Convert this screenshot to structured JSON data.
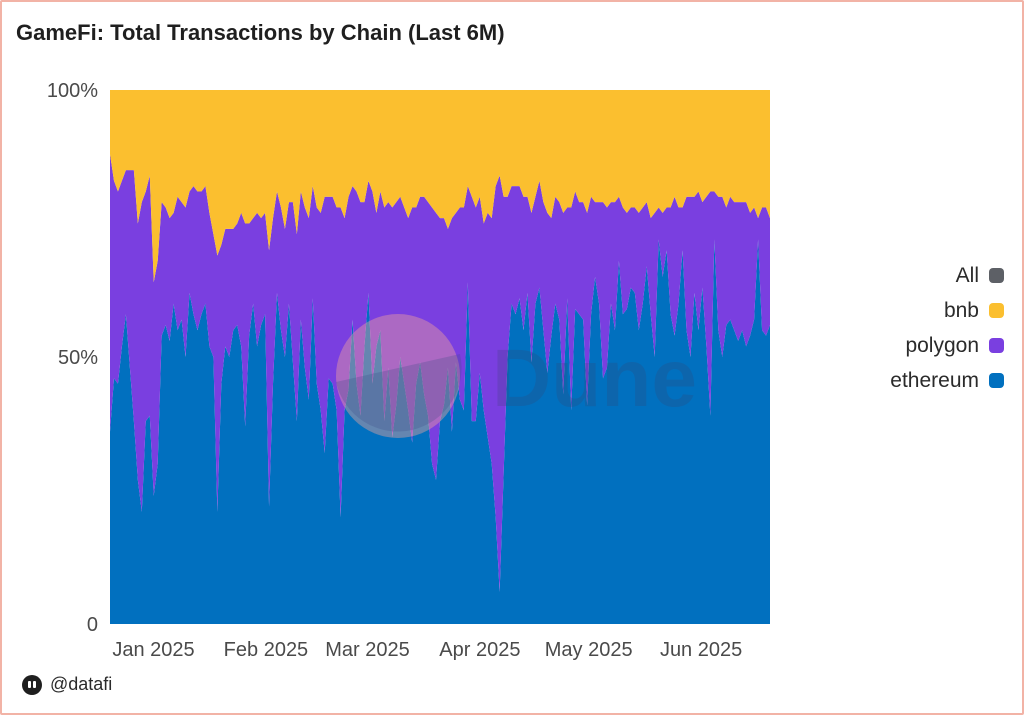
{
  "title": "GameFi: Total Transactions by Chain (Last 6M)",
  "watermark": "Dune",
  "attribution": "@datafi",
  "legend": [
    {
      "label": "All",
      "color": "#5d6066"
    },
    {
      "label": "bnb",
      "color": "#fbbf2f"
    },
    {
      "label": "polygon",
      "color": "#7a3fe0"
    },
    {
      "label": "ethereum",
      "color": "#0170bf"
    }
  ],
  "chart_data": {
    "type": "area",
    "stacked": true,
    "normalized": true,
    "x_range": [
      "2024-12-20",
      "2025-06-20"
    ],
    "x_ticks": [
      "Jan 2025",
      "Feb 2025",
      "Mar 2025",
      "Apr 2025",
      "May 2025",
      "Jun 2025"
    ],
    "y_ticks": [
      "0",
      "50%",
      "100%"
    ],
    "ylim": [
      0,
      100
    ],
    "legend_position": "right",
    "series_order_bottom_to_top": [
      "ethereum",
      "polygon",
      "bnb"
    ],
    "series": [
      {
        "name": "ethereum",
        "color": "#0170bf",
        "values": [
          36,
          46,
          45,
          52,
          58,
          48,
          38,
          27,
          21,
          38,
          39,
          24,
          30,
          54,
          56,
          53,
          60,
          55,
          57,
          50,
          62,
          58,
          55,
          58,
          60,
          52,
          50,
          21,
          45,
          52,
          50,
          55,
          56,
          52,
          37,
          54,
          60,
          52,
          56,
          58,
          22,
          45,
          62,
          55,
          50,
          60,
          49,
          38,
          57,
          48,
          42,
          61,
          45,
          40,
          32,
          46,
          45,
          40,
          20,
          40,
          44,
          57,
          45,
          39,
          52,
          62,
          45,
          52,
          55,
          38,
          48,
          35,
          41,
          50,
          45,
          40,
          34,
          45,
          49,
          43,
          39,
          30,
          27,
          38,
          41,
          48,
          36,
          49,
          42,
          40,
          64,
          38,
          38,
          47,
          40,
          35,
          30,
          20,
          6,
          28,
          50,
          60,
          58,
          61,
          55,
          62,
          49,
          60,
          63,
          55,
          47,
          54,
          60,
          57,
          43,
          61,
          40,
          59,
          58,
          57,
          41,
          58,
          65,
          60,
          46,
          48,
          60,
          55,
          68,
          58,
          59,
          63,
          62,
          55,
          60,
          67,
          58,
          50,
          72,
          65,
          70,
          58,
          54,
          60,
          70,
          55,
          50,
          62,
          55,
          63,
          52,
          39,
          72,
          55,
          50,
          56,
          57,
          55,
          53,
          55,
          52,
          54,
          57,
          72,
          55,
          54,
          56
        ]
      },
      {
        "name": "polygon",
        "color": "#7a3fe0",
        "values": [
          52,
          37,
          36,
          31,
          27,
          37,
          47,
          48,
          58,
          43,
          45,
          40,
          38,
          25,
          22,
          23,
          17,
          25,
          22,
          28,
          19,
          24,
          26,
          23,
          22,
          25,
          23,
          48,
          26,
          22,
          24,
          19,
          19,
          25,
          38,
          21,
          16,
          25,
          20,
          19,
          48,
          31,
          19,
          23,
          24,
          19,
          30,
          35,
          24,
          30,
          34,
          21,
          33,
          37,
          48,
          34,
          35,
          38,
          58,
          36,
          36,
          25,
          36,
          40,
          27,
          21,
          36,
          25,
          26,
          40,
          31,
          43,
          38,
          30,
          33,
          36,
          44,
          33,
          31,
          37,
          40,
          48,
          50,
          38,
          35,
          26,
          40,
          28,
          36,
          38,
          18,
          42,
          40,
          33,
          35,
          42,
          46,
          62,
          78,
          52,
          30,
          22,
          24,
          21,
          25,
          18,
          28,
          20,
          20,
          24,
          30,
          22,
          20,
          22,
          34,
          17,
          38,
          22,
          21,
          22,
          36,
          22,
          14,
          19,
          33,
          30,
          19,
          24,
          12,
          20,
          18,
          15,
          16,
          22,
          18,
          12,
          18,
          27,
          6,
          12,
          8,
          20,
          26,
          18,
          8,
          25,
          30,
          18,
          26,
          16,
          28,
          42,
          9,
          25,
          30,
          22,
          23,
          24,
          26,
          24,
          27,
          23,
          21,
          4,
          23,
          24,
          20
        ]
      },
      {
        "name": "bnb",
        "color": "#fbbf2f",
        "values": [
          12,
          17,
          19,
          17,
          15,
          15,
          15,
          25,
          21,
          19,
          16,
          36,
          32,
          21,
          22,
          24,
          23,
          20,
          21,
          22,
          19,
          18,
          19,
          19,
          18,
          23,
          27,
          31,
          29,
          26,
          26,
          26,
          25,
          23,
          25,
          25,
          24,
          23,
          24,
          23,
          30,
          24,
          19,
          22,
          26,
          21,
          21,
          27,
          19,
          22,
          24,
          18,
          22,
          23,
          20,
          20,
          20,
          22,
          22,
          24,
          20,
          18,
          19,
          21,
          21,
          17,
          19,
          23,
          19,
          22,
          21,
          22,
          21,
          20,
          22,
          24,
          22,
          22,
          20,
          20,
          21,
          22,
          23,
          24,
          24,
          26,
          24,
          23,
          22,
          22,
          18,
          20,
          22,
          20,
          25,
          23,
          24,
          18,
          16,
          20,
          20,
          18,
          18,
          18,
          20,
          20,
          23,
          20,
          17,
          21,
          23,
          24,
          20,
          21,
          23,
          22,
          22,
          19,
          21,
          21,
          23,
          20,
          21,
          21,
          21,
          22,
          21,
          21,
          20,
          22,
          23,
          22,
          22,
          23,
          22,
          21,
          24,
          23,
          22,
          23,
          22,
          22,
          20,
          22,
          22,
          20,
          20,
          20,
          19,
          21,
          20,
          19,
          19,
          20,
          20,
          22,
          20,
          21,
          21,
          21,
          21,
          23,
          22,
          24,
          22,
          22,
          24
        ]
      }
    ]
  }
}
